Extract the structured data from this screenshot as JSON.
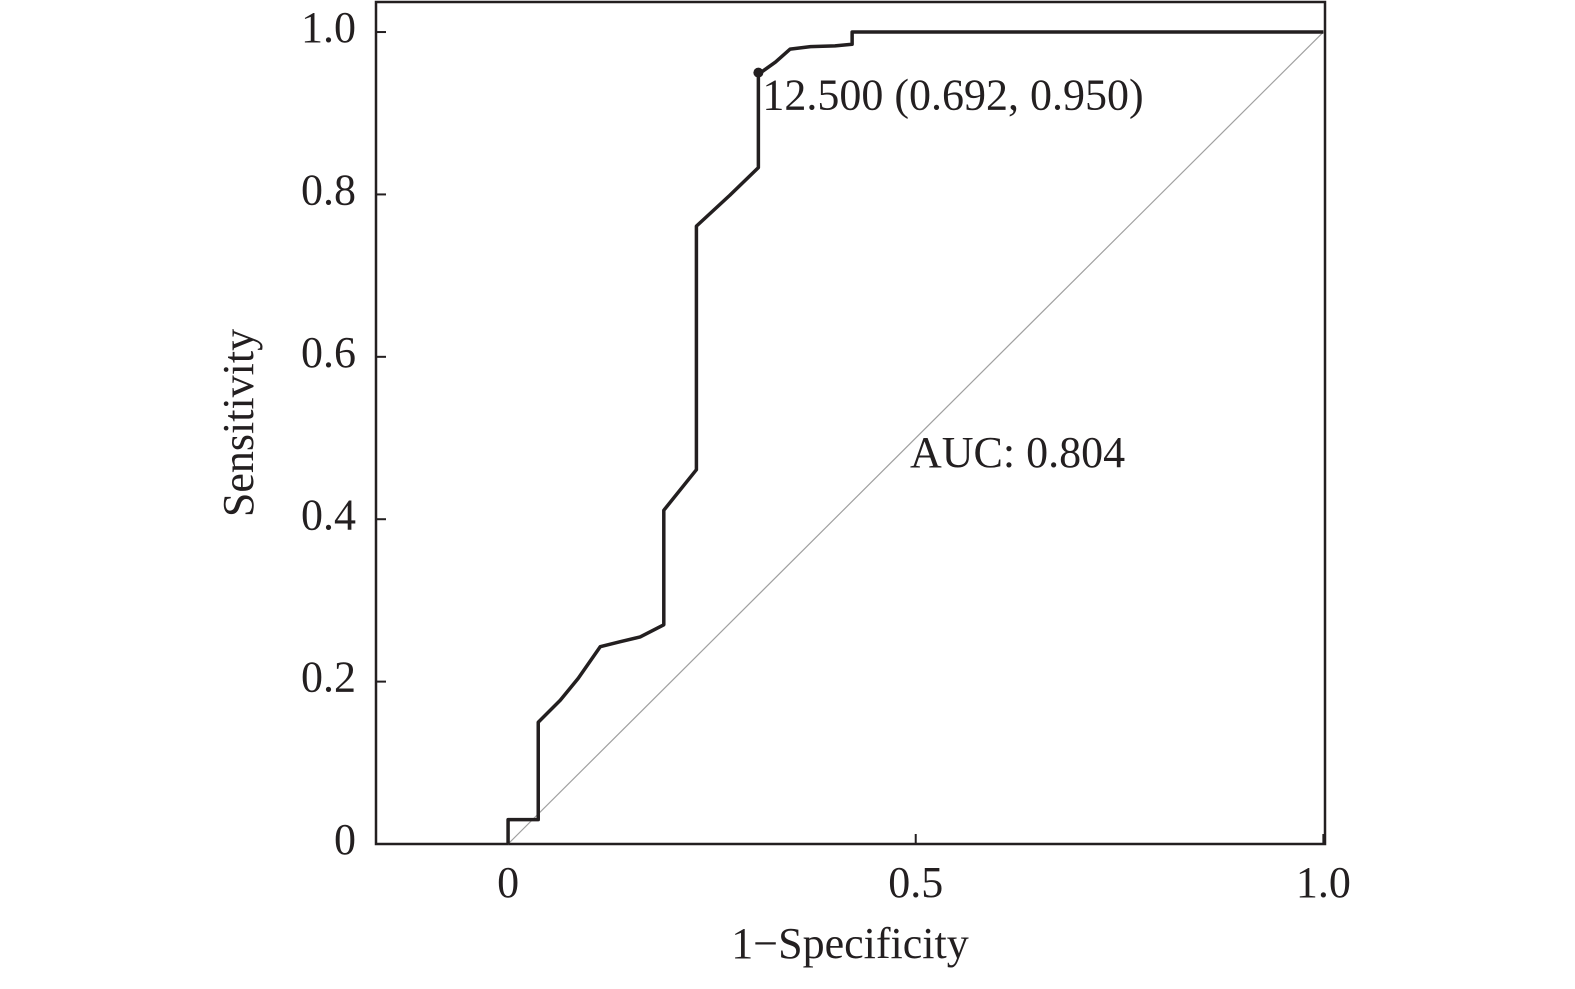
{
  "chart_data": {
    "type": "line",
    "x_label": "1−Specificity",
    "y_label": "Sensitivity",
    "x": [
      0,
      0,
      0.037,
      0.037,
      0.064,
      0.086,
      0.113,
      0.137,
      0.162,
      0.191,
      0.191,
      0.231,
      0.231,
      0.272,
      0.307,
      0.307,
      0.328,
      0.346,
      0.371,
      0.401,
      0.422,
      0.422,
      1.0
    ],
    "values": [
      0,
      0.03,
      0.03,
      0.15,
      0.177,
      0.204,
      0.243,
      0.249,
      0.255,
      0.27,
      0.411,
      0.461,
      0.761,
      0.799,
      0.833,
      0.948,
      0.963,
      0.979,
      0.982,
      0.983,
      0.985,
      1.0,
      1.0
    ],
    "color": "#231f20",
    "reference_line": {
      "x": [
        0,
        1
      ],
      "values": [
        0,
        1
      ],
      "color": "#a0a0a0"
    },
    "cutoff_point": {
      "x": 0.307,
      "y": 0.95,
      "label": "12.500 (0.692, 0.950)"
    },
    "auc_label": "AUC: 0.804",
    "xlim": [
      -0.162,
      1.002
    ],
    "ylim": [
      0,
      1.037
    ],
    "xticks": [
      0,
      0.5,
      {
        "value": 1,
        "label": "1.0"
      }
    ],
    "yticks": [
      0,
      0.2,
      0.4,
      0.6,
      0.8,
      {
        "value": 1,
        "label": "1.0"
      }
    ]
  }
}
